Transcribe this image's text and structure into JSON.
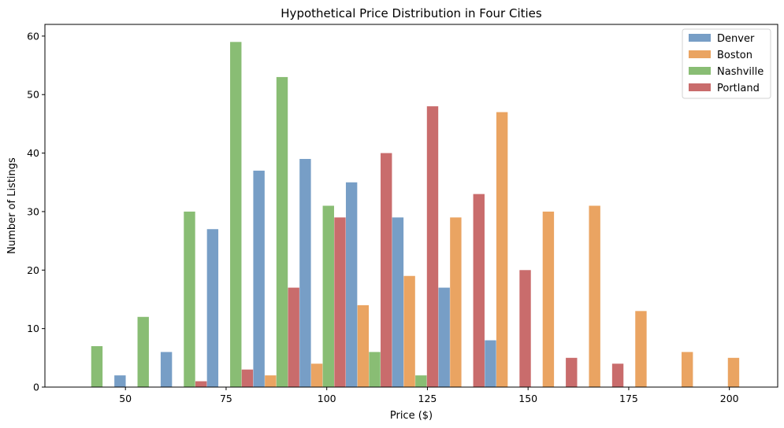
{
  "chart_data": {
    "type": "bar",
    "title": "Hypothetical Price Distribution in Four Cities",
    "xlabel": "Price ($)",
    "ylabel": "Number of Listings",
    "xlim": [
      30,
      212
    ],
    "ylim": [
      0,
      62
    ],
    "xticks": [
      50,
      75,
      100,
      125,
      150,
      175,
      200
    ],
    "yticks": [
      0,
      10,
      20,
      30,
      40,
      50,
      60
    ],
    "bin_width": 11.5,
    "x": [
      41.5,
      53,
      64.5,
      76,
      87.5,
      99,
      110.5,
      122,
      133.5,
      145,
      156.5,
      168,
      179.5,
      191,
      202.5
    ],
    "legend_position": "top-right",
    "grid": false,
    "series": [
      {
        "name": "Denver",
        "color": "#779ec6",
        "values": [
          0,
          2,
          6,
          27,
          37,
          39,
          35,
          29,
          17,
          8,
          0,
          0,
          0,
          0,
          0
        ]
      },
      {
        "name": "Boston",
        "color": "#eaa462",
        "values": [
          0,
          0,
          0,
          0,
          2,
          4,
          14,
          19,
          29,
          47,
          30,
          31,
          13,
          6,
          5
        ]
      },
      {
        "name": "Nashville",
        "color": "#89bd74",
        "values": [
          7,
          12,
          30,
          59,
          53,
          31,
          6,
          2,
          0,
          0,
          0,
          0,
          0,
          0,
          0
        ]
      },
      {
        "name": "Portland",
        "color": "#c96c6c",
        "values": [
          0,
          0,
          1,
          3,
          17,
          29,
          40,
          48,
          33,
          20,
          5,
          4,
          0,
          0,
          0
        ]
      }
    ]
  }
}
